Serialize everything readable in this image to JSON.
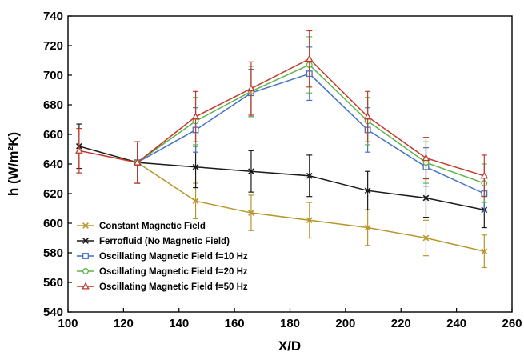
{
  "chart_data": {
    "type": "line",
    "title": "",
    "xlabel": "X/D",
    "ylabel": "h (W/m²K)",
    "xlim": [
      100,
      260
    ],
    "ylim": [
      540,
      740
    ],
    "xticks": [
      100,
      120,
      140,
      160,
      180,
      200,
      220,
      240,
      260
    ],
    "yticks": [
      540,
      560,
      580,
      600,
      620,
      640,
      660,
      680,
      700,
      720,
      740
    ],
    "grid": false,
    "legend_position": "bottom-left",
    "series": [
      {
        "name": "Constant Magnetic Field",
        "color": "#b8962e",
        "marker": "x",
        "x": [
          125,
          146,
          166,
          187,
          208,
          229,
          250
        ],
        "y": [
          641,
          615,
          607,
          602,
          597,
          590,
          581
        ],
        "err": [
          0,
          12,
          12,
          12,
          12,
          12,
          11
        ]
      },
      {
        "name": "Ferrofluid (No Magnetic Field)",
        "color": "#1a1a1a",
        "marker": "x",
        "x": [
          104,
          125,
          146,
          166,
          187,
          208,
          229,
          250
        ],
        "y": [
          652,
          641,
          638,
          635,
          632,
          622,
          617,
          609
        ],
        "err": [
          15,
          14,
          14,
          14,
          14,
          13,
          13,
          12
        ]
      },
      {
        "name": "Oscillating Magnetic Field f=10 Hz",
        "color": "#4472c4",
        "marker": "square",
        "x": [
          125,
          146,
          166,
          187,
          208,
          229,
          250
        ],
        "y": [
          641,
          663,
          688,
          701,
          663,
          638,
          620
        ],
        "err": [
          0,
          15,
          16,
          18,
          15,
          13,
          12
        ]
      },
      {
        "name": "Oscillating Magnetic Field f=20 Hz",
        "color": "#5fb14a",
        "marker": "circle",
        "x": [
          125,
          146,
          166,
          187,
          208,
          229,
          250
        ],
        "y": [
          641,
          669,
          689,
          707,
          669,
          641,
          627
        ],
        "err": [
          0,
          16,
          17,
          19,
          16,
          14,
          13
        ]
      },
      {
        "name": "Oscillating Magnetic Field f=50 Hz",
        "color": "#c0392b",
        "marker": "triangle",
        "x": [
          104,
          125,
          146,
          166,
          187,
          208,
          229,
          250
        ],
        "y": [
          649,
          641,
          672,
          691,
          711,
          672,
          644,
          632
        ],
        "err": [
          15,
          14,
          17,
          18,
          19,
          17,
          14,
          14
        ]
      }
    ]
  }
}
